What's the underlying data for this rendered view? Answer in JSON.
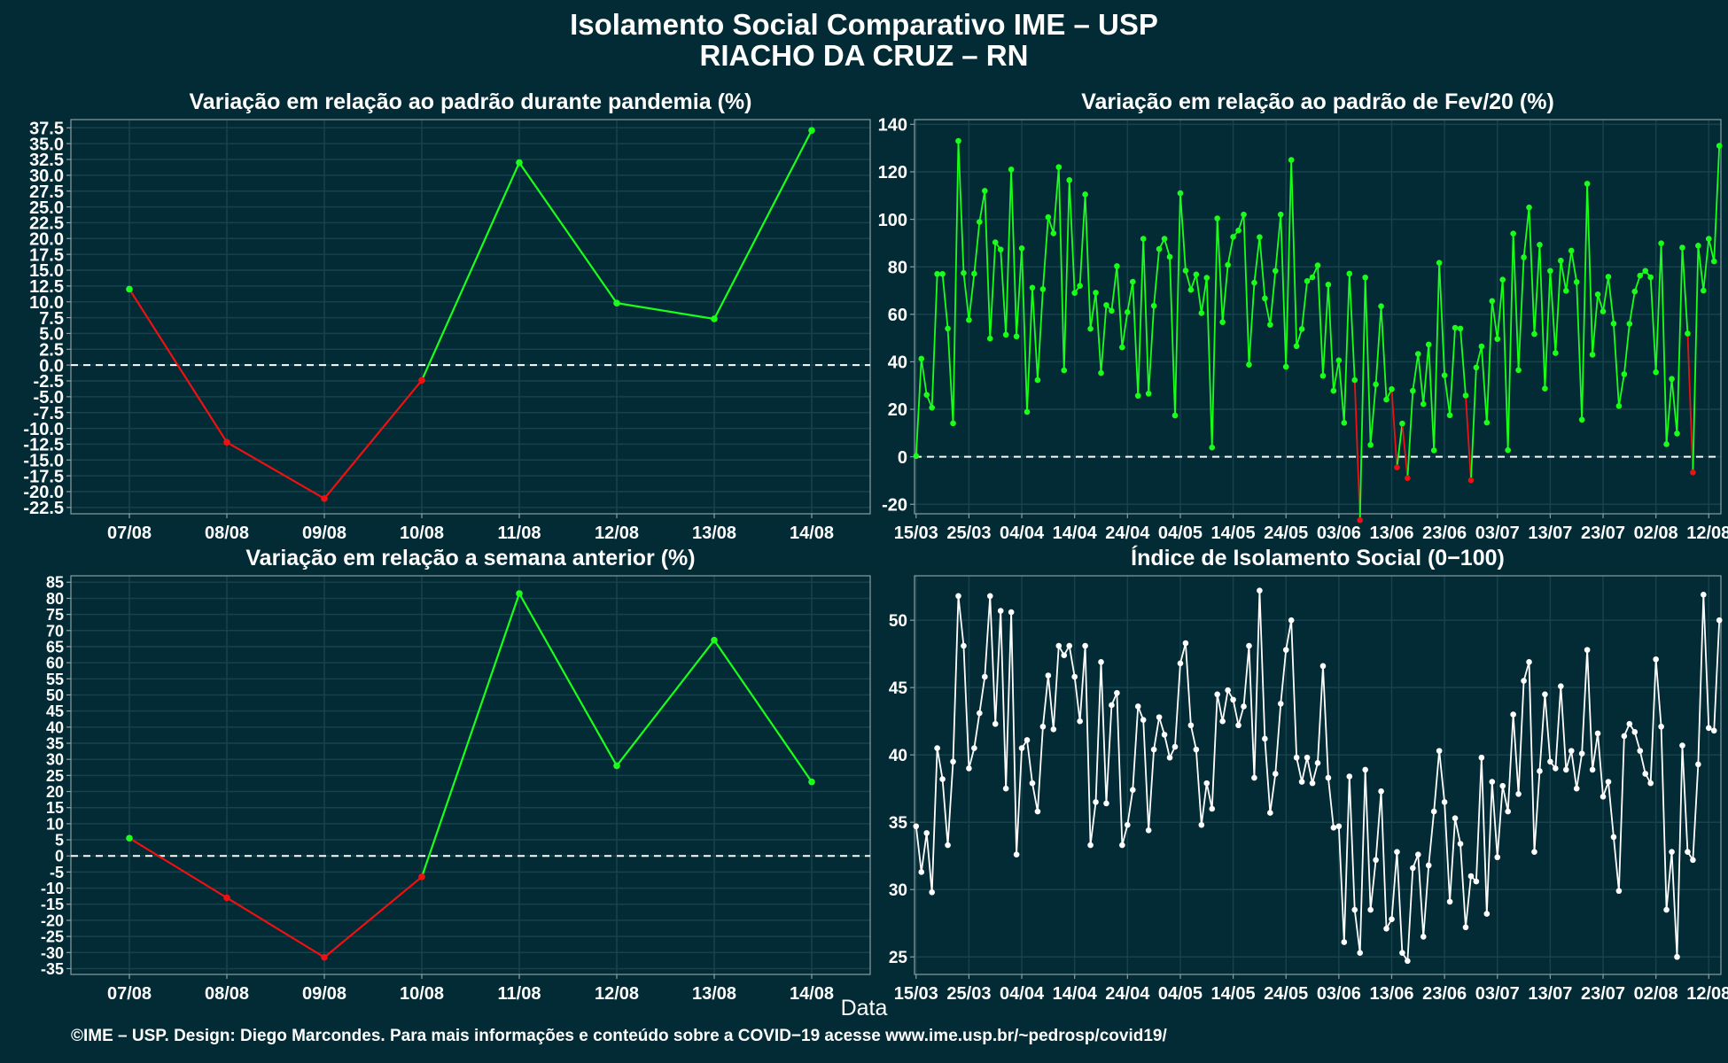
{
  "page": {
    "title": "Isolamento Social Comparativo IME – USP",
    "subtitle": "RIACHO DA CRUZ – RN",
    "xlabel": "Data",
    "footer": "©IME – USP. Design: Diego Marcondes. Para mais informações e conteúdo sobre a COVID−19 acesse www.ime.usp.br/~pedrosp/covid19/"
  },
  "colors": {
    "background": "#022b35",
    "positive": "#1aff1a",
    "negative": "#ee1111",
    "index": "#ffffff",
    "grid": "#17424c",
    "zero_line": "#ffffff",
    "axis": "#8a9ea3"
  },
  "chart_data": [
    {
      "type": "line",
      "title": "Variação em relação ao padrão durante pandemia (%)",
      "categories": [
        "07/08",
        "08/08",
        "09/08",
        "10/08",
        "11/08",
        "12/08",
        "13/08",
        "14/08"
      ],
      "values": [
        12.0,
        -12.2,
        -21.1,
        -2.4,
        32.0,
        9.8,
        7.3,
        37.1
      ],
      "ylim": [
        -23.5,
        38.8
      ],
      "yticks": [
        "37.5",
        "35.0",
        "32.5",
        "30.0",
        "27.5",
        "25.0",
        "22.5",
        "20.0",
        "17.5",
        "15.0",
        "12.5",
        "10.0",
        "7.5",
        "5.0",
        "2.5",
        "0.0",
        "-2.5",
        "-5.0",
        "-7.5",
        "-10.0",
        "-12.5",
        "-15.0",
        "-17.5",
        "-20.0",
        "-22.5"
      ],
      "zero_line": true,
      "grid": true,
      "color_rule": "green when value >= 0, red when value < 0"
    },
    {
      "type": "line",
      "title": "Variação em relação ao padrão de Fev/20 (%)",
      "x_start": "15/03",
      "xtick_labels": [
        "15/03",
        "25/03",
        "04/04",
        "14/04",
        "24/04",
        "04/05",
        "14/05",
        "24/05",
        "03/06",
        "13/06",
        "23/06",
        "03/07",
        "13/07",
        "23/07",
        "02/08",
        "12/08"
      ],
      "values": [
        0.3,
        41.3,
        26.1,
        20.7,
        77.0,
        77.0,
        54.0,
        14.1,
        133.0,
        77.4,
        57.6,
        77.1,
        98.9,
        112.0,
        49.8,
        90.3,
        87.3,
        51.4,
        121.0,
        50.7,
        87.8,
        18.9,
        71.2,
        32.3,
        70.6,
        100.9,
        94.1,
        122.0,
        36.4,
        116.5,
        69.0,
        72.0,
        110.5,
        53.9,
        69.1,
        35.3,
        63.9,
        61.5,
        80.3,
        46.1,
        60.9,
        73.7,
        25.7,
        91.8,
        26.6,
        63.6,
        87.5,
        91.8,
        84.2,
        17.4,
        111.0,
        78.4,
        70.3,
        76.8,
        60.5,
        75.4,
        3.9,
        100.4,
        56.7,
        80.8,
        92.6,
        95.3,
        102.0,
        38.8,
        73.3,
        92.5,
        66.7,
        55.6,
        78.3,
        102.0,
        37.9,
        125.0,
        46.6,
        53.8,
        74.0,
        75.6,
        80.6,
        34.1,
        72.5,
        27.8,
        40.6,
        14.3,
        77.1,
        32.3,
        -26.7,
        75.5,
        5.0,
        30.5,
        63.4,
        24.1,
        28.5,
        -4.5,
        14.0,
        -9.0,
        27.8,
        43.3,
        22.2,
        47.3,
        2.7,
        81.7,
        34.3,
        17.5,
        54.3,
        54.0,
        25.8,
        -9.9,
        37.6,
        46.5,
        14.4,
        65.6,
        49.6,
        74.6,
        2.8,
        94.0,
        36.5,
        84.0,
        105.0,
        51.7,
        89.3,
        28.7,
        78.3,
        43.7,
        82.6,
        69.9,
        86.8,
        73.6,
        15.6,
        115.0,
        43.0,
        68.4,
        61.2,
        75.8,
        56.1,
        21.4,
        34.8,
        56.0,
        69.6,
        76.3,
        78.3,
        75.6,
        35.6,
        89.9,
        5.3,
        32.8,
        9.8,
        88.1,
        51.9,
        -6.6,
        88.9,
        70.0,
        91.8,
        82.3,
        131.0
      ],
      "ylim": [
        -24,
        142
      ],
      "yticks": [
        -20,
        0,
        20,
        40,
        60,
        80,
        100,
        120,
        140
      ],
      "zero_line": true,
      "grid": true,
      "color_rule": "green when value >= 0, red when value < 0"
    },
    {
      "type": "line",
      "title": "Variação em relação a semana anterior (%)",
      "categories": [
        "07/08",
        "08/08",
        "09/08",
        "10/08",
        "11/08",
        "12/08",
        "13/08",
        "14/08"
      ],
      "values": [
        5.5,
        -13.0,
        -31.5,
        -6.5,
        81.5,
        28.0,
        67.0,
        23.0
      ],
      "ylim": [
        -36.8,
        87.0
      ],
      "yticks": [
        "85",
        "80",
        "75",
        "70",
        "65",
        "60",
        "55",
        "50",
        "45",
        "40",
        "35",
        "30",
        "25",
        "20",
        "15",
        "10",
        "5",
        "0",
        "-5",
        "-10",
        "-15",
        "-20",
        "-25",
        "-30",
        "-35"
      ],
      "zero_line": true,
      "grid": true,
      "color_rule": "green when value >= 0, red when value < 0"
    },
    {
      "type": "line",
      "title": "Índice de Isolamento Social (0−100)",
      "x_start": "15/03",
      "xtick_labels": [
        "15/03",
        "25/03",
        "04/04",
        "14/04",
        "24/04",
        "04/05",
        "14/05",
        "24/05",
        "03/06",
        "13/06",
        "23/06",
        "03/07",
        "13/07",
        "23/07",
        "02/08",
        "12/08"
      ],
      "values": [
        34.7,
        31.3,
        34.2,
        29.8,
        40.5,
        38.2,
        33.3,
        39.5,
        51.8,
        48.1,
        39.0,
        40.5,
        43.1,
        45.8,
        51.8,
        42.3,
        50.7,
        37.5,
        50.6,
        32.6,
        40.5,
        41.1,
        37.9,
        35.8,
        42.1,
        45.9,
        41.9,
        48.1,
        47.4,
        48.1,
        45.8,
        42.5,
        48.1,
        33.3,
        36.5,
        46.9,
        36.4,
        43.7,
        44.6,
        33.3,
        34.8,
        37.4,
        43.6,
        42.6,
        34.4,
        40.4,
        42.8,
        41.5,
        39.8,
        40.6,
        46.8,
        48.3,
        42.2,
        40.4,
        34.8,
        37.9,
        36.0,
        44.5,
        42.5,
        44.8,
        44.1,
        42.2,
        43.6,
        48.1,
        38.3,
        52.2,
        41.2,
        35.7,
        38.6,
        43.8,
        47.8,
        50.0,
        39.8,
        38.0,
        39.8,
        37.9,
        39.4,
        46.6,
        38.3,
        34.6,
        34.7,
        26.1,
        38.4,
        28.5,
        25.3,
        38.9,
        28.5,
        32.2,
        37.3,
        27.1,
        27.8,
        32.8,
        25.3,
        24.7,
        31.6,
        32.6,
        26.5,
        31.8,
        35.8,
        40.3,
        36.5,
        29.1,
        35.3,
        33.4,
        27.2,
        31.0,
        30.6,
        39.8,
        28.2,
        38.0,
        32.4,
        37.7,
        35.8,
        43.0,
        37.1,
        45.5,
        46.9,
        32.8,
        38.8,
        44.5,
        39.5,
        39.0,
        45.1,
        38.9,
        40.3,
        37.5,
        40.1,
        47.8,
        38.9,
        41.6,
        36.9,
        38.0,
        33.9,
        29.9,
        41.4,
        42.3,
        41.7,
        40.3,
        38.6,
        37.9,
        47.1,
        42.1,
        28.5,
        32.8,
        25.0,
        40.7,
        32.8,
        32.2,
        39.3,
        51.9,
        42.0,
        41.8,
        50.0
      ],
      "ylim": [
        23.7,
        53.3
      ],
      "yticks": [
        25,
        30,
        35,
        40,
        45,
        50
      ],
      "zero_line": false,
      "grid": true
    }
  ]
}
